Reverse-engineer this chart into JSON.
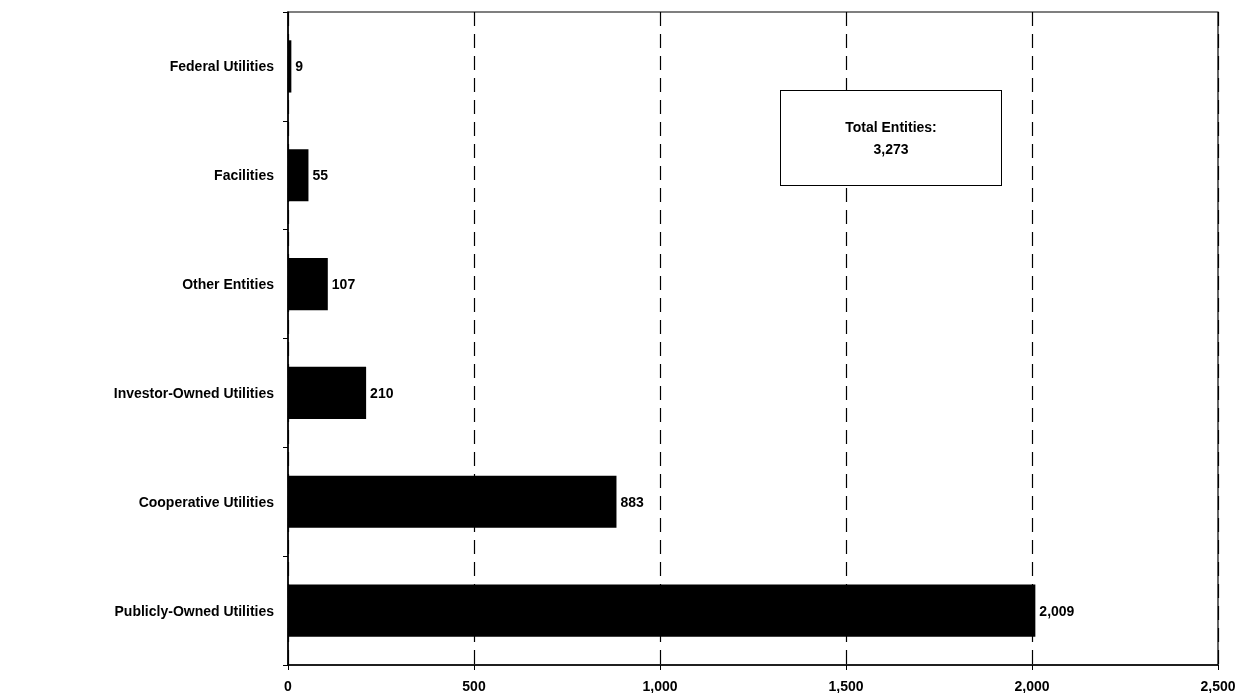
{
  "chart_data": {
    "type": "bar",
    "orientation": "horizontal",
    "categories": [
      "Federal Utilities",
      "Facilities",
      "Other Entities",
      "Investor-Owned Utilities",
      "Cooperative Utilities",
      "Publicly-Owned Utilities"
    ],
    "values": [
      9,
      55,
      107,
      210,
      883,
      2009
    ],
    "value_labels": [
      "9",
      "55",
      "107",
      "210",
      "883",
      "2,009"
    ],
    "color": "#000000",
    "xlim": [
      0,
      2500
    ],
    "xticks": [
      0,
      500,
      {
        "value": 1000,
        "label": "1,000"
      },
      {
        "value": 1500,
        "label": "1,500"
      },
      {
        "value": 2000,
        "label": "2,000"
      },
      {
        "value": 2500,
        "label": "2,500"
      }
    ],
    "grid": "x",
    "annotations": [
      "Total Entities:\n3,273"
    ]
  }
}
